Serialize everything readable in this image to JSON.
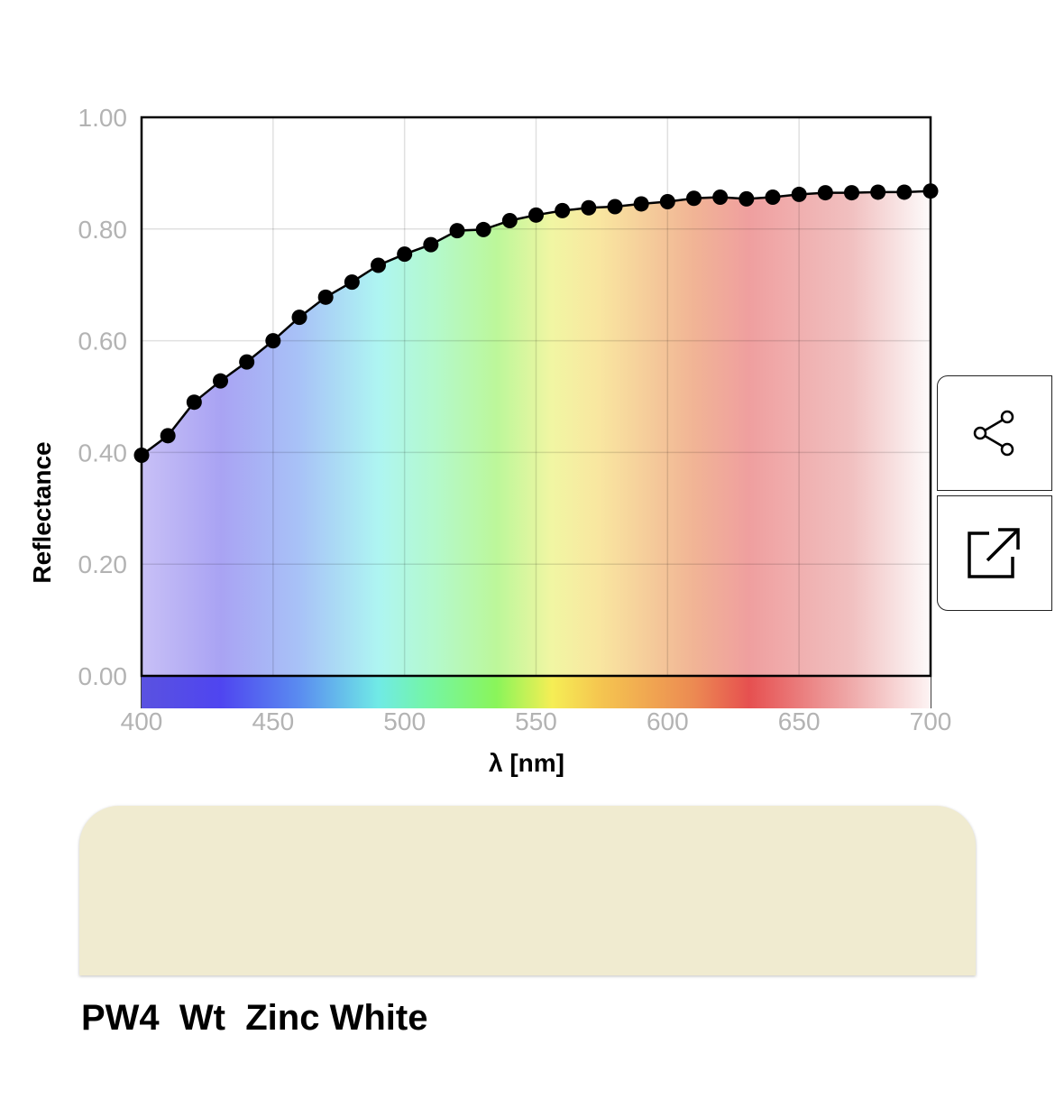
{
  "chart_data": {
    "type": "line",
    "xlabel": "λ [nm]",
    "ylabel": "Reflectance",
    "xlim": [
      400,
      700
    ],
    "ylim": [
      0,
      1
    ],
    "x_ticks": [
      400,
      450,
      500,
      550,
      600,
      650,
      700
    ],
    "y_ticks": [
      0,
      0.2,
      0.4,
      0.6,
      0.8,
      1.0
    ],
    "x_tick_labels": [
      "400",
      "450",
      "500",
      "550",
      "600",
      "650",
      "700"
    ],
    "y_tick_labels": [
      "0.00",
      "0.20",
      "0.40",
      "0.60",
      "0.80",
      "1.00"
    ],
    "grid": true,
    "background": "visible spectrum gradient",
    "series": [
      {
        "x": [
          400,
          410,
          420,
          430,
          440,
          450,
          460,
          470,
          480,
          490,
          500,
          510,
          520,
          530,
          540,
          550,
          560,
          570,
          580,
          590,
          600,
          610,
          620,
          630,
          640,
          650,
          660,
          670,
          680,
          690,
          700
        ],
        "y": [
          0.395,
          0.43,
          0.49,
          0.528,
          0.562,
          0.6,
          0.642,
          0.678,
          0.705,
          0.735,
          0.755,
          0.772,
          0.797,
          0.799,
          0.815,
          0.825,
          0.833,
          0.838,
          0.84,
          0.845,
          0.849,
          0.855,
          0.857,
          0.854,
          0.857,
          0.862,
          0.865,
          0.865,
          0.866,
          0.866,
          0.868
        ]
      }
    ]
  },
  "swatch": {
    "color": "#f0ebd0"
  },
  "pigment": {
    "code": "PW4",
    "type": "Wt",
    "name": "Zinc White"
  },
  "buttons": {
    "share_icon": "share-icon",
    "open_external_icon": "open-external-icon"
  }
}
